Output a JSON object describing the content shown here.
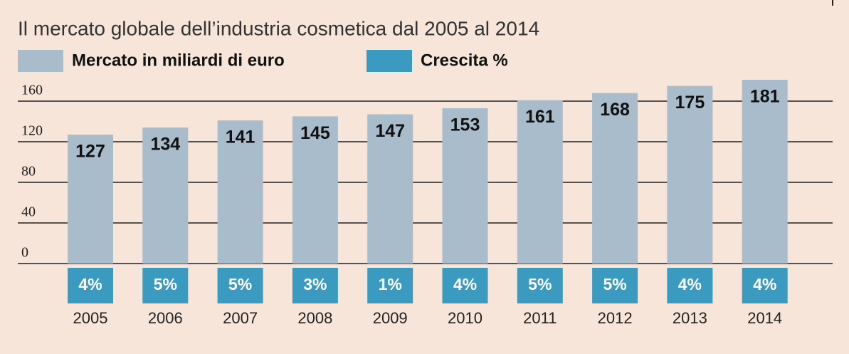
{
  "chart_data": {
    "type": "bar",
    "title": "Il mercato globale dell’industria cosmetica dal 2005 al 2014",
    "categories": [
      "2005",
      "2006",
      "2007",
      "2008",
      "2009",
      "2010",
      "2011",
      "2012",
      "2013",
      "2014"
    ],
    "series": [
      {
        "name": "Mercato in miliardi di euro",
        "color": "#a9bccb",
        "values": [
          127,
          134,
          141,
          145,
          147,
          153,
          161,
          168,
          175,
          181
        ]
      },
      {
        "name": "Crescita %",
        "color": "#3b9abf",
        "values": [
          4,
          5,
          5,
          3,
          1,
          4,
          5,
          5,
          4,
          4
        ],
        "value_labels": [
          "4%",
          "5%",
          "5%",
          "3%",
          "1%",
          "4%",
          "5%",
          "5%",
          "4%",
          "4%"
        ]
      }
    ],
    "ylim": [
      0,
      190
    ],
    "yticks": [
      0,
      40,
      80,
      120,
      160
    ],
    "grid": true
  }
}
